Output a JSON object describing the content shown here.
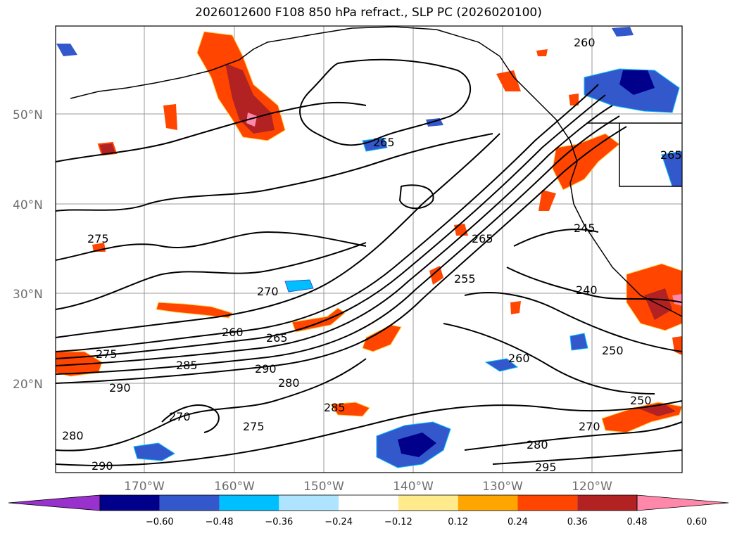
{
  "title": "2026012600 F108 850 hPa refract., SLP PC (2026020100)",
  "lat_labels": [
    {
      "text": "50°N",
      "lat": 50
    },
    {
      "text": "40°N",
      "lat": 40
    },
    {
      "text": "30°N",
      "lat": 30
    },
    {
      "text": "20°N",
      "lat": 20
    }
  ],
  "lon_labels": [
    {
      "text": "170°W",
      "lon": -170
    },
    {
      "text": "160°W",
      "lon": -160
    },
    {
      "text": "150°W",
      "lon": -150
    },
    {
      "text": "140°W",
      "lon": -140
    },
    {
      "text": "130°W",
      "lon": -130
    },
    {
      "text": "120°W",
      "lon": -120
    }
  ],
  "contour_labels": [
    "260",
    "265",
    "265",
    "275",
    "270",
    "260",
    "265",
    "275",
    "285",
    "290",
    "290",
    "280",
    "270",
    "275",
    "285",
    "280",
    "290",
    "245",
    "240",
    "250",
    "260",
    "250",
    "270",
    "280",
    "295",
    "255",
    "265"
  ],
  "colorbar": {
    "colors": [
      "#9932cc",
      "#00008b",
      "#3358cc",
      "#00bfff",
      "#aee4ff",
      "#ffffff",
      "#ffeb8c",
      "#ffa500",
      "#ff4500",
      "#b22222",
      "#ff88aa"
    ],
    "labels": [
      "−0.60",
      "−0.48",
      "−0.36",
      "−0.24",
      "−0.12",
      "0.12",
      "0.24",
      "0.36",
      "0.48",
      "0.60"
    ]
  }
}
